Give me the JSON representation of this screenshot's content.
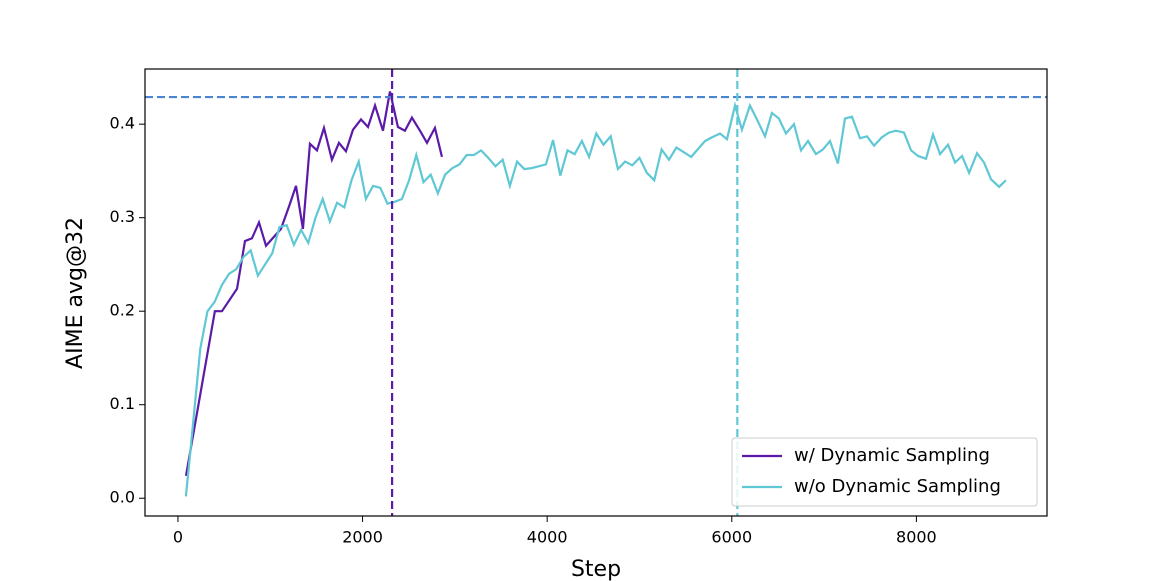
{
  "chart_data": {
    "type": "line",
    "x_label": "Step",
    "y_label": "AIME avg@32",
    "xlim": [
      -357,
      9415
    ],
    "ylim": [
      -0.019,
      0.459
    ],
    "xticks": [
      0,
      2000,
      4000,
      6000,
      8000
    ],
    "yticks": [
      {
        "value": 0,
        "label": "0.0"
      },
      0.1,
      0.2,
      0.3,
      0.4
    ],
    "legend": "lower right",
    "reference_lines": [
      {
        "axis": "y",
        "value": 0.429,
        "color": "#4a86d0"
      },
      {
        "axis": "x",
        "value": 2320,
        "color": "#5b1aa8"
      },
      {
        "axis": "x",
        "value": 6060,
        "color": "#5fc8d4"
      }
    ],
    "series": [
      {
        "name": "w/ Dynamic Sampling",
        "color": "#5b1aa8",
        "x": [
          87,
          400,
          477,
          640,
          726,
          802,
          878,
          954,
          1116,
          1203,
          1279,
          1354,
          1430,
          1506,
          1582,
          1668,
          1744,
          1820,
          1896,
          1983,
          2059,
          2135,
          2221,
          2297,
          2383,
          2459,
          2535,
          2622,
          2698,
          2784,
          2860
        ],
        "values": [
          0.024,
          0.2,
          0.2,
          0.224,
          0.275,
          0.278,
          0.295,
          0.27,
          0.288,
          0.312,
          0.334,
          0.288,
          0.379,
          0.372,
          0.396,
          0.362,
          0.38,
          0.371,
          0.394,
          0.405,
          0.397,
          0.42,
          0.393,
          0.435,
          0.397,
          0.393,
          0.407,
          0.393,
          0.38,
          0.396,
          0.365
        ]
      },
      {
        "name": "w/o Dynamic Sampling",
        "color": "#5fc8d4",
        "x": [
          86,
          164,
          242,
          320,
          398,
          476,
          554,
          632,
          710,
          788,
          866,
          944,
          1022,
          1100,
          1178,
          1256,
          1334,
          1412,
          1490,
          1568,
          1646,
          1724,
          1802,
          1880,
          1958,
          2036,
          2114,
          2192,
          2270,
          2348,
          2426,
          2504,
          2582,
          2660,
          2738,
          2816,
          2894,
          2972,
          3050,
          3128,
          3206,
          3284,
          3362,
          3440,
          3518,
          3596,
          3674,
          3752,
          3830,
          3908,
          3986,
          4064,
          4142,
          4220,
          4298,
          4376,
          4454,
          4532,
          4610,
          4688,
          4766,
          4844,
          4922,
          5000,
          5080,
          5160,
          5240,
          5320,
          5400,
          5480,
          5560,
          5710,
          5787,
          5872,
          5948,
          6035,
          6110,
          6197,
          6273,
          6360,
          6435,
          6511,
          6587,
          6674,
          6750,
          6826,
          6912,
          6988,
          7064,
          7150,
          7226,
          7302,
          7389,
          7465,
          7541,
          7627,
          7703,
          7779,
          7866,
          7942,
          8018,
          8104,
          8180,
          8256,
          8343,
          8419,
          8495,
          8571,
          8657,
          8733,
          8809,
          8896,
          8970
        ],
        "values": [
          0.002,
          0.08,
          0.16,
          0.2,
          0.21,
          0.228,
          0.24,
          0.245,
          0.258,
          0.265,
          0.238,
          0.25,
          0.262,
          0.29,
          0.292,
          0.271,
          0.287,
          0.273,
          0.3,
          0.32,
          0.296,
          0.316,
          0.311,
          0.34,
          0.36,
          0.32,
          0.334,
          0.332,
          0.315,
          0.317,
          0.32,
          0.34,
          0.367,
          0.338,
          0.346,
          0.326,
          0.346,
          0.353,
          0.357,
          0.367,
          0.367,
          0.372,
          0.364,
          0.355,
          0.362,
          0.334,
          0.36,
          0.352,
          0.353,
          0.355,
          0.357,
          0.383,
          0.345,
          0.372,
          0.368,
          0.382,
          0.365,
          0.39,
          0.378,
          0.387,
          0.352,
          0.36,
          0.356,
          0.364,
          0.348,
          0.34,
          0.373,
          0.362,
          0.375,
          0.37,
          0.365,
          0.382,
          0.386,
          0.39,
          0.384,
          0.42,
          0.394,
          0.42,
          0.405,
          0.387,
          0.412,
          0.406,
          0.39,
          0.4,
          0.372,
          0.382,
          0.368,
          0.373,
          0.382,
          0.358,
          0.406,
          0.408,
          0.385,
          0.387,
          0.377,
          0.386,
          0.391,
          0.393,
          0.391,
          0.372,
          0.366,
          0.363,
          0.389,
          0.368,
          0.378,
          0.359,
          0.366,
          0.348,
          0.369,
          0.359,
          0.341,
          0.333,
          0.34
        ]
      }
    ]
  }
}
